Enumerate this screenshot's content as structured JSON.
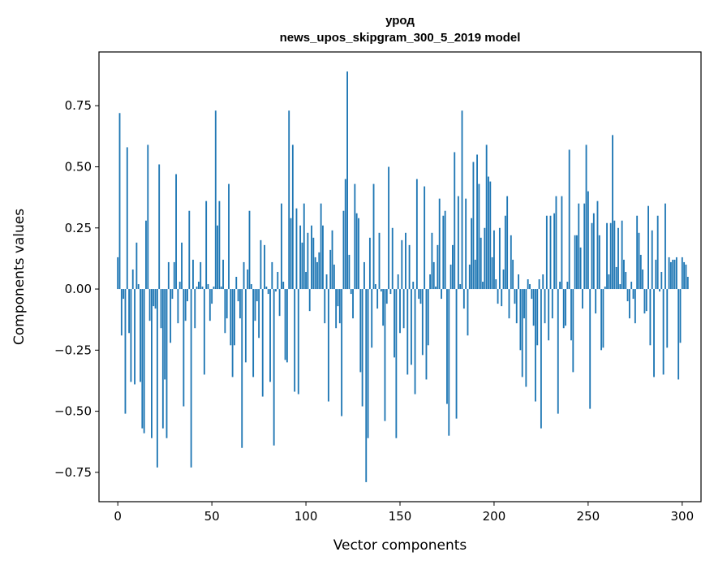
{
  "chart_data": {
    "type": "bar",
    "title_lines": [
      "урод",
      "news_upos_skipgram_300_5_2019 model"
    ],
    "xlabel": "Vector components",
    "ylabel": "Components values",
    "xlim": [
      -10,
      310
    ],
    "ylim": [
      -0.87,
      0.97
    ],
    "xticks": [
      0,
      50,
      100,
      150,
      200,
      250,
      300
    ],
    "xtick_labels": [
      "0",
      "50",
      "100",
      "150",
      "200",
      "250",
      "300"
    ],
    "yticks": [
      -0.75,
      -0.5,
      -0.25,
      0.0,
      0.25,
      0.5,
      0.75
    ],
    "ytick_labels": [
      "−0.75",
      "−0.50",
      "−0.25",
      "0.00",
      "0.25",
      "0.50",
      "0.75"
    ],
    "bar_color": "#1f77b4",
    "values": [
      0.13,
      0.72,
      -0.19,
      -0.04,
      -0.51,
      0.58,
      -0.18,
      -0.38,
      0.08,
      -0.39,
      0.19,
      0.02,
      -0.38,
      -0.57,
      -0.59,
      0.28,
      0.59,
      -0.13,
      -0.61,
      -0.07,
      -0.08,
      -0.73,
      0.51,
      -0.16,
      -0.57,
      -0.37,
      -0.61,
      0.11,
      -0.22,
      -0.04,
      0.11,
      0.47,
      -0.14,
      0.03,
      0.19,
      -0.48,
      -0.13,
      -0.05,
      0.32,
      -0.73,
      0.12,
      -0.16,
      0.01,
      0.03,
      0.11,
      0.01,
      -0.35,
      0.36,
      0.02,
      -0.13,
      -0.06,
      0.01,
      0.73,
      0.26,
      0.36,
      0.01,
      0.12,
      -0.18,
      -0.12,
      0.43,
      -0.23,
      -0.36,
      -0.23,
      0.05,
      -0.05,
      -0.12,
      -0.65,
      0.11,
      -0.3,
      0.08,
      0.32,
      0.02,
      -0.36,
      -0.13,
      -0.05,
      -0.2,
      0.2,
      -0.44,
      0.18,
      0.01,
      -0.02,
      -0.38,
      0.11,
      -0.64,
      -0.01,
      0.07,
      -0.11,
      0.35,
      0.03,
      -0.29,
      -0.3,
      0.73,
      0.29,
      0.59,
      -0.42,
      0.33,
      -0.43,
      0.26,
      0.19,
      0.35,
      0.07,
      0.23,
      -0.09,
      0.26,
      0.21,
      0.13,
      0.11,
      0.15,
      0.35,
      0.26,
      -0.14,
      0.06,
      -0.46,
      0.16,
      0.24,
      0.1,
      -0.16,
      -0.07,
      -0.14,
      -0.52,
      0.32,
      0.45,
      0.89,
      0.14,
      -0.02,
      -0.12,
      0.43,
      0.31,
      0.29,
      -0.34,
      -0.48,
      0.11,
      -0.79,
      -0.61,
      0.21,
      -0.24,
      0.43,
      0.02,
      -0.08,
      0.23,
      -0.01,
      -0.15,
      -0.54,
      -0.06,
      0.5,
      -0.02,
      0.25,
      -0.28,
      -0.61,
      0.06,
      -0.18,
      0.2,
      -0.16,
      0.23,
      -0.35,
      0.18,
      -0.31,
      0.03,
      -0.43,
      0.45,
      -0.04,
      -0.06,
      -0.27,
      0.42,
      -0.37,
      -0.23,
      0.06,
      0.23,
      0.11,
      0.01,
      0.18,
      0.37,
      -0.04,
      0.3,
      0.32,
      -0.47,
      -0.6,
      0.1,
      0.18,
      0.56,
      -0.53,
      0.38,
      0.02,
      0.73,
      -0.08,
      0.37,
      -0.19,
      0.1,
      0.29,
      0.52,
      0.12,
      0.55,
      0.43,
      0.21,
      0.03,
      0.25,
      0.59,
      0.46,
      0.44,
      0.13,
      0.24,
      0.04,
      -0.06,
      0.25,
      -0.07,
      0.08,
      0.3,
      0.38,
      -0.12,
      0.22,
      0.12,
      -0.06,
      -0.14,
      0.06,
      -0.25,
      -0.36,
      -0.12,
      -0.4,
      0.04,
      0.02,
      -0.04,
      -0.15,
      -0.46,
      -0.23,
      0.04,
      -0.57,
      0.06,
      -0.14,
      0.3,
      -0.21,
      0.3,
      -0.12,
      0.31,
      0.38,
      -0.51,
      0.03,
      0.38,
      -0.16,
      -0.15,
      0.03,
      0.57,
      -0.21,
      -0.34,
      0.22,
      0.22,
      0.35,
      0.17,
      -0.08,
      0.35,
      0.59,
      0.4,
      -0.49,
      0.27,
      0.31,
      -0.1,
      0.36,
      0.22,
      -0.25,
      -0.24,
      0.01,
      0.27,
      0.06,
      0.27,
      0.63,
      0.28,
      0.09,
      0.25,
      0.02,
      0.28,
      0.12,
      0.07,
      -0.05,
      -0.12,
      0.03,
      -0.04,
      -0.14,
      0.3,
      0.23,
      0.14,
      0.08,
      -0.1,
      -0.09,
      0.34,
      -0.23,
      0.24,
      -0.36,
      0.12,
      0.3,
      -0.01,
      0.07,
      -0.35,
      0.35,
      -0.24,
      0.13,
      0.11,
      0.12,
      0.12,
      0.13,
      -0.37,
      -0.22,
      0.13,
      0.11,
      0.1,
      0.05
    ]
  }
}
